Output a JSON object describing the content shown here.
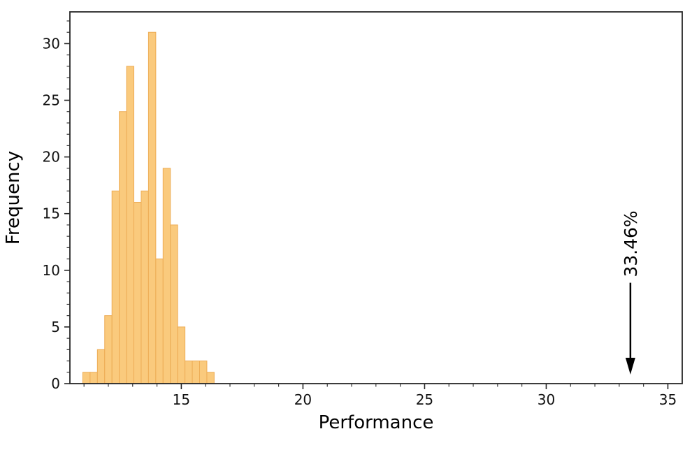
{
  "chart_data": {
    "type": "bar",
    "subtype": "histogram",
    "title": "",
    "xlabel": "Performance",
    "ylabel": "Frequency",
    "bin_start": 10.95,
    "bin_width": 0.3,
    "counts": [
      1,
      1,
      3,
      6,
      17,
      24,
      28,
      16,
      17,
      31,
      11,
      19,
      14,
      5,
      2,
      2,
      2,
      1
    ],
    "total_samples": 200,
    "xlim": [
      10.42,
      35.59
    ],
    "ylim": [
      0,
      32.8
    ],
    "xticks": [
      15,
      20,
      25,
      30,
      35
    ],
    "yticks": [
      0,
      5,
      10,
      15,
      20,
      25,
      30
    ],
    "minor_tick_step": 1,
    "grid": false,
    "legend": null,
    "annotation": {
      "label": "33.46%",
      "x": 33.46,
      "arrow_tail_y": 8.9,
      "arrow_tip_y": 0.8
    },
    "colors": {
      "bar_fill": "#FACA7D",
      "bar_edge": "#EDAC55",
      "axis": "#262626",
      "tick_label": "#111111",
      "text": "#000000",
      "background": "#ffffff"
    }
  }
}
